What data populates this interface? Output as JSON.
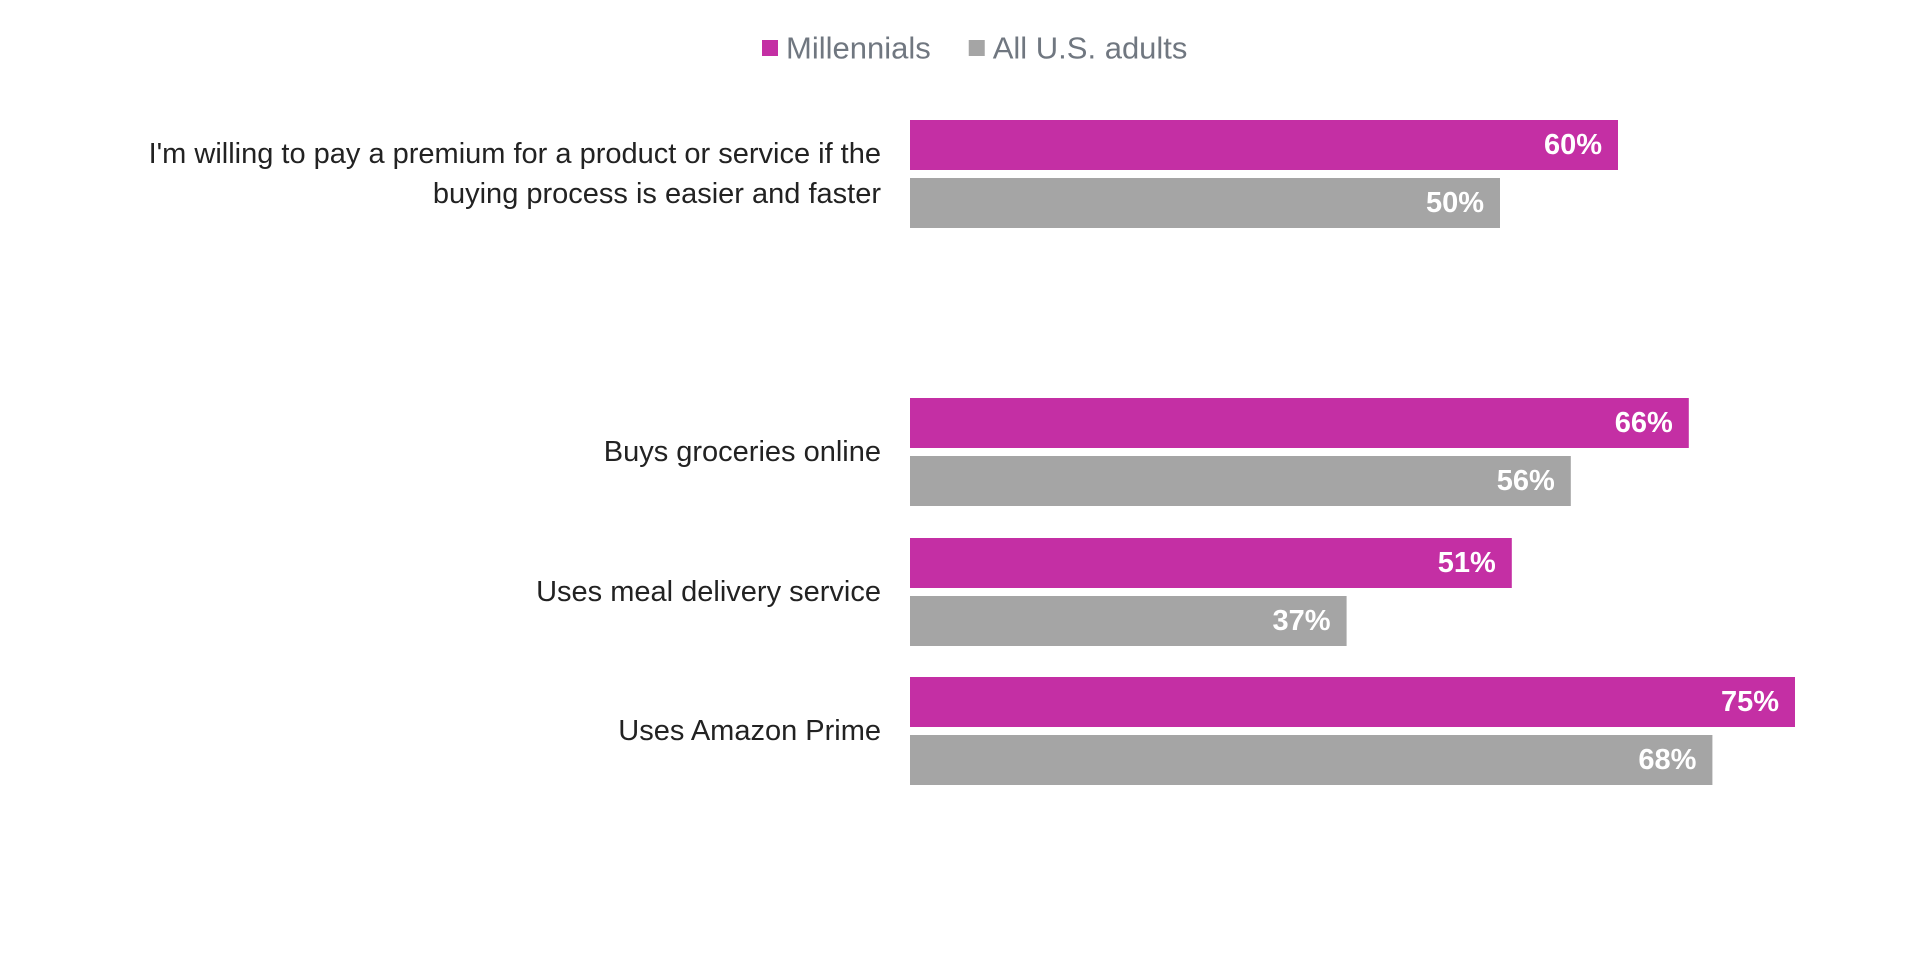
{
  "colors": {
    "millennials": "#c42fa4",
    "all_adults": "#a5a5a5",
    "category_text": "#222222",
    "legend_text": "#707780",
    "value_text": "#ffffff"
  },
  "legend": {
    "position": "top-center",
    "items": [
      {
        "label": "Millennials",
        "color": "#c42fa4"
      },
      {
        "label": "All U.S. adults",
        "color": "#a5a5a5"
      }
    ]
  },
  "chart_data": {
    "type": "bar",
    "orientation": "horizontal",
    "title": "",
    "xlabel": "",
    "ylabel": "",
    "xlim": [
      0,
      100
    ],
    "grid": false,
    "value_suffix": "%",
    "categories": [
      [
        "I'm willing to pay a premium for a product or service if the",
        "buying process is easier and faster"
      ],
      [
        "Buys groceries online"
      ],
      [
        "Uses meal delivery service"
      ],
      [
        "Uses Amazon Prime"
      ]
    ],
    "series": [
      {
        "name": "Millennials",
        "color": "#c42fa4",
        "values": [
          60,
          66,
          51,
          75
        ]
      },
      {
        "name": "All U.S. adults",
        "color": "#a5a5a5",
        "values": [
          50,
          56,
          37,
          68
        ]
      }
    ]
  }
}
